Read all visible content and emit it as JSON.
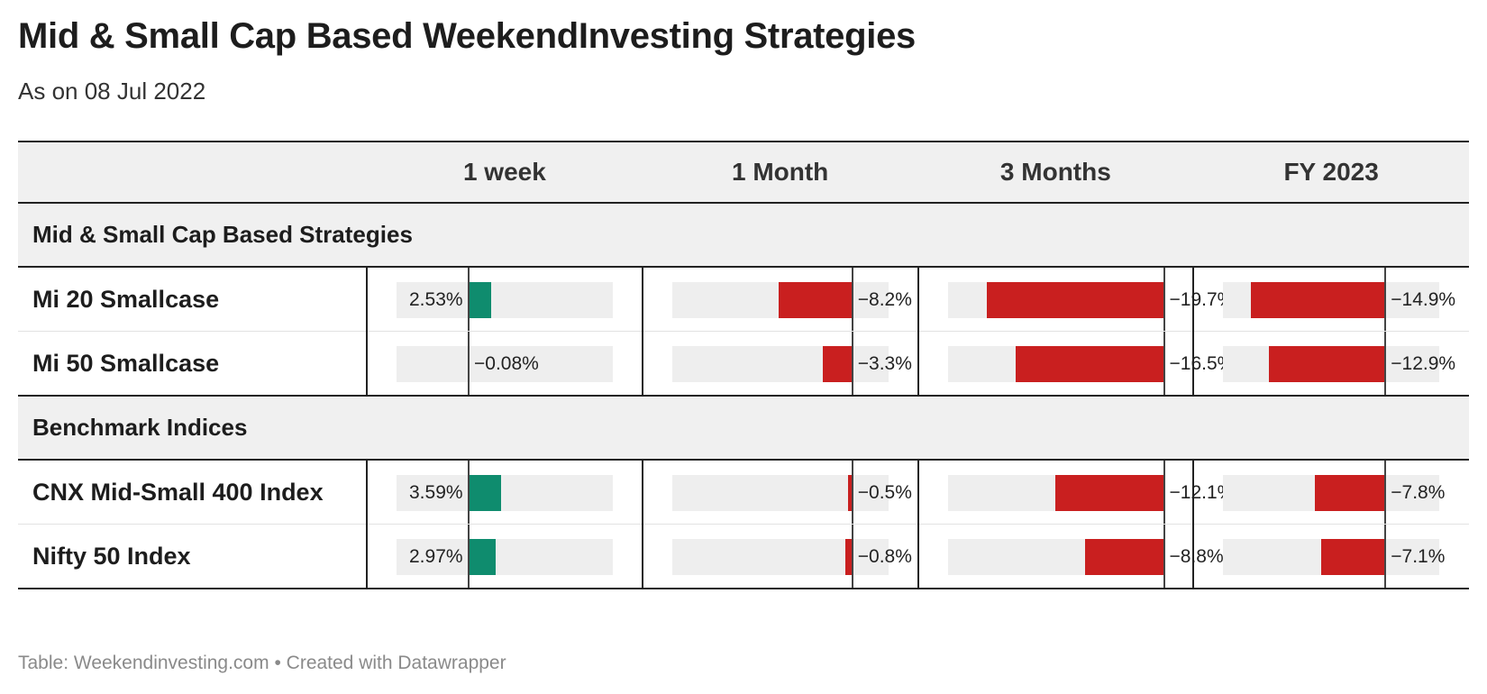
{
  "title": "Mid & Small Cap Based WeekendInvesting Strategies",
  "subtitle": "As on 08 Jul 2022",
  "footer": {
    "source": "Table: Weekendinvesting.com",
    "sep": "•",
    "credit": "Created with Datawrapper"
  },
  "colors": {
    "positive": "#0f8c6e",
    "negative": "#c91f1f",
    "track": "#eeeeee"
  },
  "chart_data": {
    "type": "table",
    "columns": [
      "1 week",
      "1 Month",
      "3 Months",
      "FY 2023"
    ],
    "column_ranges": [
      [
        -8,
        16
      ],
      [
        -20,
        4
      ],
      [
        -24,
        0
      ],
      [
        -18,
        6
      ]
    ],
    "groups": [
      {
        "name": "Mid & Small Cap Based Strategies",
        "rows": [
          {
            "name": "Mi 20 Smallcase",
            "values": [
              2.53,
              -8.2,
              -19.7,
              -14.9
            ],
            "labels": [
              "2.53%",
              "−8.2%",
              "−19.7%",
              "−14.9%"
            ]
          },
          {
            "name": "Mi 50 Smallcase",
            "values": [
              -0.08,
              -3.3,
              -16.5,
              -12.9
            ],
            "labels": [
              "−0.08%",
              "−3.3%",
              "−16.5%",
              "−12.9%"
            ]
          }
        ]
      },
      {
        "name": "Benchmark Indices",
        "rows": [
          {
            "name": "CNX Mid-Small 400 Index",
            "values": [
              3.59,
              -0.5,
              -12.1,
              -7.8
            ],
            "labels": [
              "3.59%",
              "−0.5%",
              "−12.1%",
              "−7.8%"
            ]
          },
          {
            "name": "Nifty 50 Index",
            "values": [
              2.97,
              -0.8,
              -8.8,
              -7.1
            ],
            "labels": [
              "2.97%",
              "−0.8%",
              "−8.8%",
              "−7.1%"
            ]
          }
        ]
      }
    ]
  }
}
